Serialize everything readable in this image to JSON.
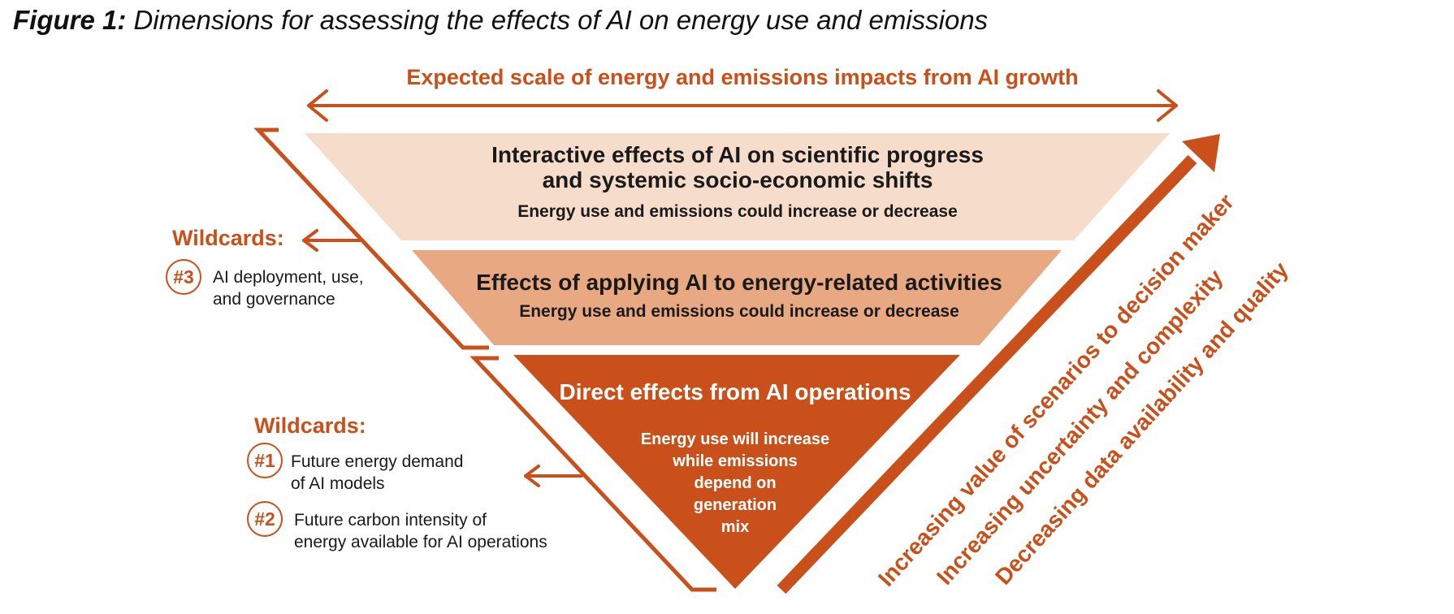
{
  "figure": {
    "label": "Figure 1:",
    "title": "Dimensions for assessing the effects of AI on energy use and emissions"
  },
  "scale_arrow": {
    "label": "Expected scale of energy and emissions impacts from AI growth"
  },
  "tiers": {
    "top": {
      "title_line1": "Interactive effects of AI on scientific progress",
      "title_line2": "and systemic socio-economic shifts",
      "subtitle": "Energy use and emissions could increase or decrease"
    },
    "middle": {
      "title": "Effects of applying AI to energy-related activities",
      "subtitle": "Energy use and emissions could increase or decrease"
    },
    "bottom": {
      "title": "Direct effects from AI operations",
      "desc_line1": "Energy use will increase",
      "desc_line2": "while emissions",
      "desc_line3": "depend on",
      "desc_line4": "generation",
      "desc_line5": "mix"
    }
  },
  "wildcards_upper": {
    "heading": "Wildcards:",
    "items": [
      {
        "badge": "#3",
        "line1": "AI deployment, use,",
        "line2": "and governance"
      }
    ]
  },
  "wildcards_lower": {
    "heading": "Wildcards:",
    "items": [
      {
        "badge": "#1",
        "line1": "Future energy demand",
        "line2": "of AI models"
      },
      {
        "badge": "#2",
        "line1": "Future carbon intensity of",
        "line2": "energy available for AI operations"
      }
    ]
  },
  "diagonal_labels": [
    "Increasing value of scenarios to decision maker",
    "Increasing uncertainty and complexity",
    "Decreasing data availability and quality"
  ],
  "colors": {
    "accent": "#c9501a",
    "tier_top": "#f6dccb",
    "tier_middle": "#e8a982",
    "tier_bottom": "#c9501a"
  }
}
